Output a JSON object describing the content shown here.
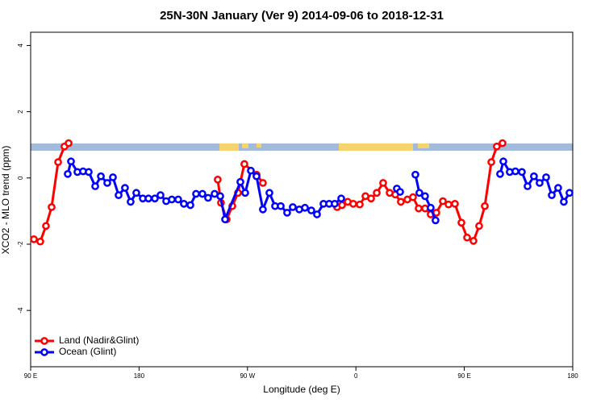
{
  "chart_data": {
    "type": "line",
    "title": "25N-30N January (Ver 9)   2014-09-06 to 2018-12-31",
    "x_label": "Longitude (deg E)",
    "y_label": "XCO2 - MLO trend (ppm)",
    "xlim": [
      90,
      540
    ],
    "xticks": [
      {
        "value": 90,
        "label": "90 E"
      },
      180,
      {
        "value": 270,
        "label": "90 W"
      },
      {
        "value": 360,
        "label": "0"
      },
      {
        "value": 450,
        "label": "90 E"
      },
      {
        "value": 540,
        "label": "180"
      }
    ],
    "ylim": [
      -5.7,
      4.4
    ],
    "yticks": [
      -4,
      -2,
      0,
      2,
      4
    ],
    "legend": "bottom-left",
    "series": [
      {
        "name": "Land (Nadir&Glint)",
        "color": "#ff0000",
        "x": [
          92.7,
          98.0,
          102.7,
          107.4,
          112.8,
          118.1,
          121.5,
          null,
          245.3,
          248.0,
          252.7,
          257.4,
          262.1,
          267.4,
          277.5,
          282.8,
          null,
          344.4,
          348.5,
          353.2,
          357.8,
          363.2,
          367.9,
          372.6,
          377.3,
          382.6,
          388.0,
          392.7,
          397.3,
          402.7,
          407.4,
          412.1,
          417.4,
          422.1,
          426.8,
          432.2,
          436.9,
          442.2,
          447.6,
          452.3,
          457.6,
          462.3,
          467.0,
          472.4,
          477.0,
          481.7
        ],
        "values": [
          -1.85,
          -1.92,
          -1.45,
          -0.88,
          0.48,
          0.95,
          1.05,
          null,
          -0.05,
          -0.75,
          -1.25,
          -0.85,
          -0.45,
          0.42,
          0.1,
          -0.15,
          null,
          -0.88,
          -0.82,
          -0.72,
          -0.78,
          -0.8,
          -0.55,
          -0.62,
          -0.45,
          -0.15,
          -0.45,
          -0.5,
          -0.72,
          -0.65,
          -0.58,
          -0.92,
          -0.92,
          -1.1,
          -1.05,
          -0.7,
          -0.8,
          -0.78,
          -1.35,
          -1.8,
          -1.9,
          -1.45,
          -0.85,
          0.48,
          0.95,
          1.05
        ]
      },
      {
        "name": "Ocean (Glint)",
        "color": "#0000ff",
        "x": [
          120.8,
          123.5,
          128.8,
          133.5,
          138.2,
          143.6,
          148.3,
          153.6,
          158.3,
          163.0,
          168.3,
          173.0,
          177.7,
          183.1,
          187.8,
          193.1,
          197.8,
          202.5,
          207.2,
          212.5,
          217.2,
          222.6,
          227.3,
          232.6,
          237.3,
          242.7,
          247.4,
          251.4,
          264.1,
          268.1,
          272.8,
          277.5,
          282.8,
          288.2,
          292.9,
          297.6,
          302.9,
          307.6,
          313.0,
          317.7,
          323.0,
          327.7,
          333.1,
          337.8,
          342.4,
          347.8,
          null,
          394.0,
          396.7,
          null,
          409.4,
          412.7,
          417.4,
          422.1,
          426.1,
          null,
          479.7,
          482.4,
          487.7,
          492.4,
          497.8,
          502.5,
          507.8,
          512.5,
          517.9,
          522.6,
          527.9,
          532.6,
          537.3
        ],
        "values": [
          0.12,
          0.5,
          0.18,
          0.2,
          0.18,
          -0.25,
          0.05,
          -0.15,
          0.02,
          -0.52,
          -0.3,
          -0.72,
          -0.45,
          -0.62,
          -0.62,
          -0.62,
          -0.52,
          -0.7,
          -0.65,
          -0.65,
          -0.78,
          -0.82,
          -0.48,
          -0.48,
          -0.6,
          -0.48,
          -0.55,
          -1.25,
          -0.12,
          -0.45,
          0.22,
          0.05,
          -0.95,
          -0.45,
          -0.85,
          -0.85,
          -1.05,
          -0.88,
          -0.95,
          -0.9,
          -0.98,
          -1.1,
          -0.78,
          -0.78,
          -0.78,
          -0.62,
          null,
          -0.32,
          -0.42,
          null,
          0.1,
          -0.45,
          -0.55,
          -0.9,
          -1.28,
          null,
          0.12,
          0.5,
          0.18,
          0.2,
          0.18,
          -0.25,
          0.05,
          -0.15,
          0.02,
          -0.52,
          -0.3,
          -0.72,
          -0.45
        ]
      }
    ]
  }
}
